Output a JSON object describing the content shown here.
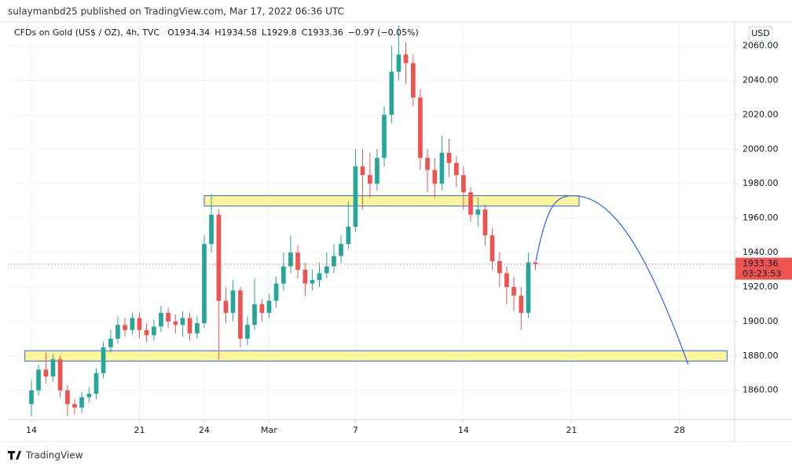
{
  "publisher": "sulaymanbd25 published on TradingView.com, Mar 17, 2022 06:36 UTC",
  "brand": "TradingView",
  "chart_data": {
    "type": "candlestick",
    "title": "CFDs on Gold (US$ / OZ), 4h, TVC",
    "legend": [
      {
        "label": "O",
        "value": 1934.34
      },
      {
        "label": "H",
        "value": 1934.58
      },
      {
        "label": "L",
        "value": 1929.8
      },
      {
        "label": "C",
        "value": 1933.36
      }
    ],
    "change": "−0.97 (−0.05%)",
    "currency": "USD",
    "last_price": 1933.36,
    "countdown": "03:23:53",
    "up_color": "#26a69a",
    "down_color": "#ef5350",
    "grid": true,
    "xlim": [
      -1.09,
      32.55
    ],
    "xticks": [
      {
        "value": 0,
        "label": "14"
      },
      {
        "value": 5,
        "label": "21"
      },
      {
        "value": 8,
        "label": "24"
      },
      {
        "value": 11,
        "label": "Mar"
      },
      {
        "value": 15,
        "label": "7"
      },
      {
        "value": 20,
        "label": "14"
      },
      {
        "value": 25,
        "label": "21"
      },
      {
        "value": 30,
        "label": "28"
      }
    ],
    "ylim": [
      1843,
      2073
    ],
    "yticks": [
      {
        "value": 1860,
        "label": "1860.00"
      },
      {
        "value": 1880,
        "label": "1880.00"
      },
      {
        "value": 1900,
        "label": "1900.00"
      },
      {
        "value": 1920,
        "label": "1920.00"
      },
      {
        "value": 1940,
        "label": "1940.00"
      },
      {
        "value": 1960,
        "label": "1960.00"
      },
      {
        "value": 1980,
        "label": "1980.00"
      },
      {
        "value": 2000,
        "label": "2000.00"
      },
      {
        "value": 2020,
        "label": "2020.00"
      },
      {
        "value": 2040,
        "label": "2040.00"
      },
      {
        "value": 2060,
        "label": "2060.00"
      }
    ],
    "x": [
      0,
      0.33,
      0.67,
      1,
      1.33,
      1.67,
      2,
      2.33,
      2.67,
      3,
      3.33,
      3.67,
      4,
      4.33,
      4.67,
      5,
      5.33,
      5.67,
      6,
      6.33,
      6.67,
      7,
      7.33,
      7.67,
      8,
      8.33,
      8.67,
      9,
      9.33,
      9.67,
      10,
      10.33,
      10.67,
      11,
      11.33,
      11.67,
      12,
      12.33,
      12.67,
      13,
      13.33,
      13.67,
      14,
      14.33,
      14.67,
      15,
      15.33,
      15.67,
      16,
      16.33,
      16.67,
      17,
      17.33,
      17.67,
      18,
      18.33,
      18.67,
      19,
      19.33,
      19.67,
      20,
      20.33,
      20.67,
      21,
      21.33,
      21.67,
      22,
      22.33,
      22.67,
      23,
      23.33
    ],
    "open": [
      1852,
      1860,
      1872,
      1868,
      1878,
      1860,
      1852,
      1850,
      1856,
      1858,
      1870,
      1885,
      1890,
      1898,
      1895,
      1902,
      1895,
      1892,
      1897,
      1905,
      1900,
      1898,
      1902,
      1893,
      1899,
      1945,
      1962,
      1912,
      1905,
      1918,
      1890,
      1898,
      1910,
      1905,
      1912,
      1922,
      1932,
      1940,
      1930,
      1922,
      1924,
      1928,
      1932,
      1938,
      1945,
      1955,
      1990,
      1985,
      1980,
      1995,
      2020,
      2045,
      2055,
      2050,
      2030,
      1995,
      1988,
      1980,
      1998,
      1992,
      1985,
      1975,
      1962,
      1965,
      1950,
      1935,
      1928,
      1920,
      1915,
      1905,
      1934.34
    ],
    "high": [
      1866,
      1875,
      1882,
      1881,
      1880,
      1863,
      1855,
      1859,
      1862,
      1873,
      1888,
      1895,
      1903,
      1902,
      1905,
      1905,
      1899,
      1901,
      1909,
      1908,
      1904,
      1906,
      1905,
      1903,
      1950,
      1974,
      1965,
      1920,
      1924,
      1920,
      1903,
      1925,
      1913,
      1916,
      1926,
      1940,
      1950,
      1944,
      1934,
      1930,
      1934,
      1940,
      1945,
      1950,
      1970,
      2000,
      2000,
      1998,
      2000,
      2025,
      2060,
      2072,
      2062,
      2055,
      2035,
      2000,
      1995,
      2008,
      2006,
      1996,
      1990,
      1978,
      1972,
      1968,
      1954,
      1940,
      1932,
      1926,
      1920,
      1940,
      1934.58
    ],
    "low": [
      1845,
      1857,
      1864,
      1865,
      1856,
      1845,
      1846,
      1847,
      1853,
      1855,
      1867,
      1882,
      1887,
      1891,
      1892,
      1890,
      1888,
      1889,
      1894,
      1896,
      1893,
      1891,
      1889,
      1890,
      1896,
      1940,
      1878,
      1899,
      1900,
      1885,
      1886,
      1895,
      1900,
      1902,
      1908,
      1918,
      1928,
      1925,
      1915,
      1918,
      1920,
      1925,
      1928,
      1934,
      1942,
      1952,
      1965,
      1972,
      1976,
      1990,
      2015,
      2040,
      2038,
      2025,
      1988,
      1975,
      1972,
      1976,
      1984,
      1978,
      1965,
      1958,
      1955,
      1944,
      1930,
      1920,
      1910,
      1906,
      1895,
      1902,
      1929.8
    ],
    "close": [
      1860,
      1872,
      1868,
      1878,
      1860,
      1852,
      1850,
      1856,
      1858,
      1870,
      1885,
      1890,
      1898,
      1895,
      1902,
      1895,
      1892,
      1897,
      1905,
      1900,
      1898,
      1902,
      1893,
      1899,
      1945,
      1962,
      1912,
      1905,
      1918,
      1890,
      1898,
      1910,
      1905,
      1912,
      1922,
      1932,
      1940,
      1930,
      1922,
      1924,
      1928,
      1932,
      1938,
      1945,
      1955,
      1990,
      1985,
      1980,
      1995,
      2020,
      2045,
      2055,
      2050,
      2030,
      1995,
      1988,
      1980,
      1998,
      1992,
      1985,
      1975,
      1962,
      1965,
      1950,
      1935,
      1928,
      1920,
      1915,
      1905,
      1934.34,
      1933.36
    ],
    "zones": [
      {
        "from": 8,
        "to": 25.35,
        "low": 1967,
        "high": 1973,
        "color": "#fff59d",
        "border": "#2962ff"
      },
      {
        "from": -0.3,
        "to": 32.2,
        "low": 1877,
        "high": 1883,
        "color": "#fff59d",
        "border": "#2962ff"
      }
    ],
    "projection": {
      "x": [
        23.35,
        25.1,
        30.4
      ],
      "y": [
        1935,
        1973,
        1875
      ],
      "color": "#2962ff"
    }
  }
}
